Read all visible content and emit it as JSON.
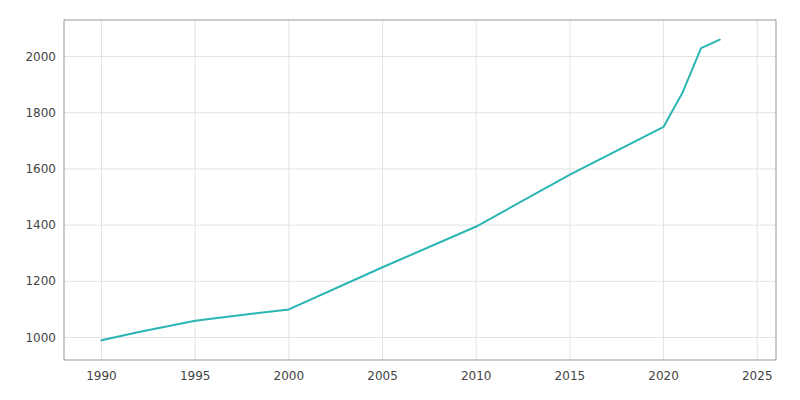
{
  "chart_data": {
    "type": "line",
    "x": [
      1990,
      1992,
      1995,
      2000,
      2005,
      2010,
      2015,
      2020,
      2021,
      2022,
      2023
    ],
    "values": [
      990,
      1020,
      1060,
      1100,
      1250,
      1395,
      1580,
      1750,
      1870,
      2030,
      2060
    ],
    "color": "#2ab5b5",
    "xlim": [
      1988,
      2026
    ],
    "ylim": [
      920,
      2130
    ],
    "xticks": [
      1990,
      1995,
      2000,
      2005,
      2010,
      2015,
      2020,
      2025
    ],
    "yticks": [
      1000,
      1200,
      1400,
      1600,
      1800,
      2000
    ],
    "grid": true
  }
}
